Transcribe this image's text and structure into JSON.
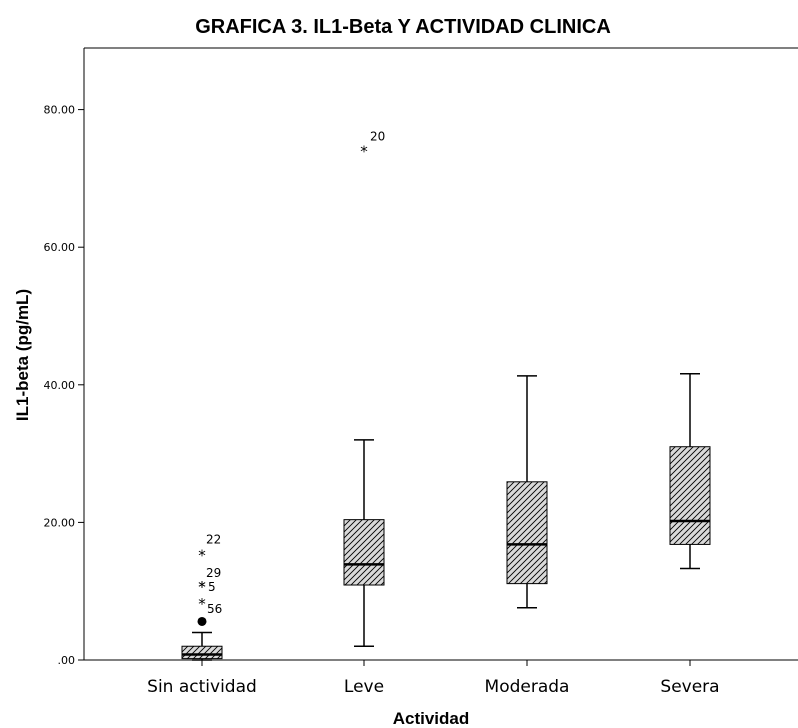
{
  "chart_data": {
    "type": "box",
    "title": "GRAFICA 3. IL1-Beta Y ACTIVIDAD CLINICA",
    "xlabel": "Actividad",
    "ylabel": "IL1-beta (pg/mL)",
    "ylim": [
      0,
      80
    ],
    "yticks": [
      ".00",
      "20.00",
      "40.00",
      "60.00",
      "80.00"
    ],
    "ytick_values": [
      0,
      20,
      40,
      60,
      80
    ],
    "grid": false,
    "box_fill_pattern": "diagonal-hatch",
    "categories": [
      "Sin actividad",
      "Leve",
      "Moderada",
      "Severa"
    ],
    "boxes": [
      {
        "category": "Sin actividad",
        "min": 0.0,
        "q1": 0.2,
        "median": 0.8,
        "q3": 2.0,
        "max": 4.0,
        "outliers": [
          {
            "value": 5.6,
            "marker": "circle",
            "label": ""
          },
          {
            "value": 8.4,
            "marker": "star",
            "label": "56"
          },
          {
            "value": 10.9,
            "marker": "star",
            "label": "5"
          },
          {
            "value": 10.9,
            "marker": "star",
            "label": "29"
          },
          {
            "value": 15.5,
            "marker": "star",
            "label": "22"
          }
        ]
      },
      {
        "category": "Leve",
        "min": 2.0,
        "q1": 10.9,
        "median": 13.9,
        "q3": 20.4,
        "max": 32.0,
        "outliers": [
          {
            "value": 74.2,
            "marker": "star",
            "label": "20"
          }
        ]
      },
      {
        "category": "Moderada",
        "min": 7.6,
        "q1": 11.1,
        "median": 16.8,
        "q3": 25.9,
        "max": 41.3,
        "outliers": []
      },
      {
        "category": "Severa",
        "min": 13.3,
        "q1": 16.8,
        "median": 20.2,
        "q3": 31.0,
        "max": 41.6,
        "outliers": []
      }
    ]
  }
}
